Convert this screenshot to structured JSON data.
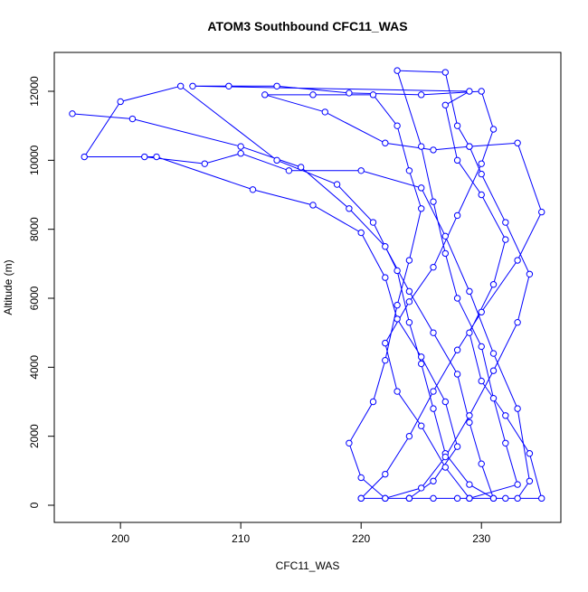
{
  "chart_data": {
    "type": "line",
    "title": "ATOM3 Southbound CFC11_WAS",
    "x_label": "CFC11_WAS",
    "y_label": "Altitude (m)",
    "color": "#0000ff",
    "markers": true,
    "xlim": [
      194.5,
      236.6
    ],
    "ylim": [
      -498,
      13127
    ],
    "xticks": [
      200,
      210,
      220,
      230
    ],
    "yticks": [
      0,
      2000,
      4000,
      6000,
      8000,
      10000,
      12000
    ],
    "x": [
      196,
      201,
      210,
      215,
      219,
      222,
      224,
      226,
      228,
      229,
      230,
      231,
      231,
      229,
      227,
      226,
      225,
      224,
      223,
      221,
      218,
      213,
      205,
      200,
      197,
      203,
      211,
      216,
      220,
      222,
      223,
      225,
      227,
      228,
      226,
      224,
      224,
      226,
      229,
      233,
      232,
      231,
      230,
      228,
      227,
      226,
      225,
      223,
      227,
      228,
      229,
      230,
      232,
      234,
      233,
      231,
      229,
      227,
      225,
      222,
      222,
      220,
      219,
      221,
      222,
      223,
      224,
      225,
      224,
      223,
      221,
      216,
      212,
      217,
      222,
      226,
      229,
      233,
      235,
      233,
      230,
      228,
      226,
      224,
      222,
      220,
      220,
      224,
      228,
      232,
      235,
      234,
      232,
      230,
      229,
      231,
      232,
      230,
      228,
      227,
      229,
      206,
      209,
      213,
      219,
      225,
      230,
      231,
      230,
      228,
      226,
      224,
      222,
      223,
      225,
      227,
      229,
      229,
      233,
      234,
      233,
      231,
      229,
      227,
      225,
      220,
      214,
      210,
      207,
      202
    ],
    "values": [
      11350,
      11200,
      10400,
      9800,
      8600,
      7500,
      6200,
      5000,
      3800,
      2400,
      1200,
      200,
      200,
      600,
      1500,
      2800,
      4100,
      5300,
      6800,
      8200,
      9300,
      10000,
      12150,
      11700,
      10100,
      10100,
      9150,
      8700,
      7900,
      6600,
      5400,
      4300,
      3000,
      1700,
      700,
      200,
      200,
      200,
      200,
      600,
      1800,
      3100,
      4600,
      6000,
      7300,
      8800,
      10400,
      12600,
      12550,
      11000,
      10400,
      9600,
      8200,
      6700,
      5300,
      3900,
      2600,
      1400,
      500,
      200,
      200,
      800,
      1800,
      3000,
      4200,
      5800,
      7100,
      8600,
      9700,
      11000,
      11900,
      11900,
      11900,
      11400,
      10500,
      10300,
      10400,
      10500,
      8500,
      7100,
      5600,
      4500,
      3300,
      2000,
      900,
      200,
      200,
      200,
      200,
      200,
      200,
      1500,
      2600,
      3600,
      5000,
      6400,
      7700,
      9000,
      10000,
      11600,
      12000,
      12150,
      12150,
      12150,
      11950,
      11900,
      12000,
      10900,
      9900,
      8400,
      6900,
      5900,
      4700,
      3300,
      2300,
      1100,
      200,
      200,
      200,
      700,
      2800,
      4400,
      6200,
      7800,
      9200,
      9700,
      9700,
      10200,
      9900,
      10100
    ]
  }
}
